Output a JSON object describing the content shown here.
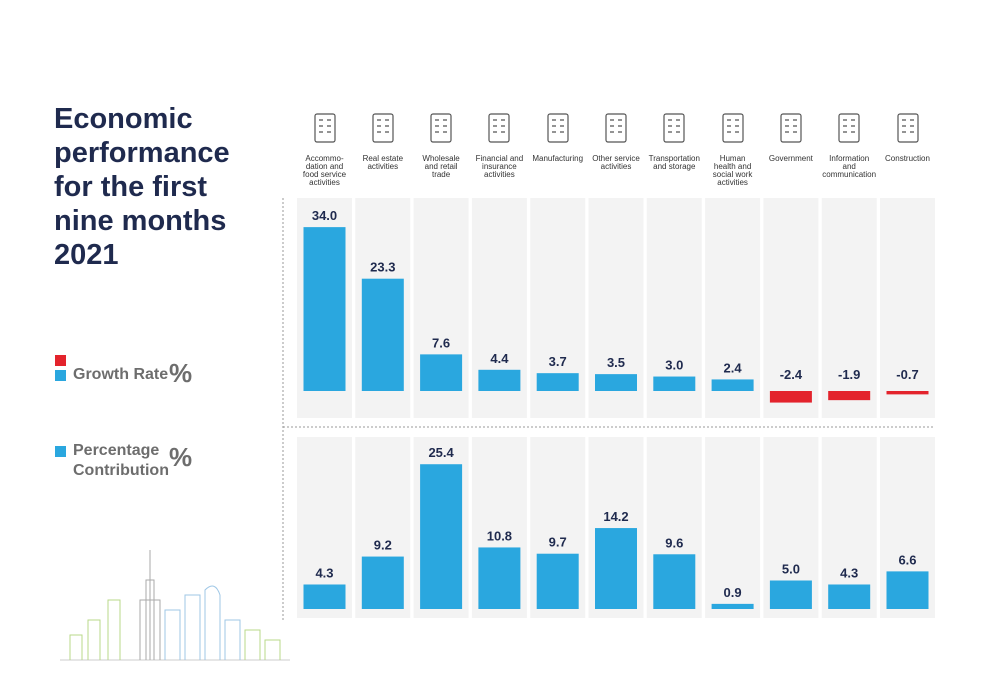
{
  "title": "Economic performance for the first nine months 2021",
  "legend": {
    "growth": "Growth Rate",
    "contribution_line1": "Percentage",
    "contribution_line2": "Contribution",
    "percent_symbol": "%"
  },
  "colors": {
    "positive": "#2aa7df",
    "negative": "#e3232c",
    "panel": "#f3f3f3",
    "title": "#1f2a4e"
  },
  "chart_data": [
    {
      "type": "bar",
      "title": "Growth Rate %",
      "categories": [
        "Accommodation and food service activities",
        "Real estate activities",
        "Wholesale and retail trade",
        "Financial and insurance activities",
        "Manufacturing",
        "Other service activities",
        "Transportation and storage",
        "Human health and social work activities",
        "Government",
        "Information and communication",
        "Construction"
      ],
      "values": [
        34.0,
        23.3,
        7.6,
        4.4,
        3.7,
        3.5,
        3.0,
        2.4,
        -2.4,
        -1.9,
        -0.7
      ],
      "labels": [
        "34.0",
        "23.3",
        "7.6",
        "4.4",
        "3.7",
        "3.5",
        "3.0",
        "2.4",
        "-2.4",
        "-1.9",
        "-0.7"
      ]
    },
    {
      "type": "bar",
      "title": "Percentage Contribution %",
      "categories": [
        "Accommodation and food service activities",
        "Real estate activities",
        "Wholesale and retail trade",
        "Financial and insurance activities",
        "Manufacturing",
        "Other service activities",
        "Transportation and storage",
        "Human health and social work activities",
        "Government",
        "Information and communication",
        "Construction"
      ],
      "values": [
        4.3,
        9.2,
        25.4,
        10.8,
        9.7,
        14.2,
        9.6,
        0.9,
        5.0,
        4.3,
        6.6
      ],
      "labels": [
        "4.3",
        "9.2",
        "25.4",
        "10.8",
        "9.7",
        "14.2",
        "9.6",
        "0.9",
        "5.0",
        "4.3",
        "6.6"
      ]
    }
  ],
  "sectors": [
    {
      "label": [
        "Accommo-",
        "dation and",
        "food service",
        "activities"
      ],
      "icon": "hotel-service-icon"
    },
    {
      "label": [
        "Real estate",
        "activities"
      ],
      "icon": "building-icon"
    },
    {
      "label": [
        "Wholesale",
        "and retail",
        "trade"
      ],
      "icon": "shopping-cart-icon"
    },
    {
      "label": [
        "Financial and",
        "insurance",
        "activities"
      ],
      "icon": "coin-icon"
    },
    {
      "label": [
        "Manufacturing"
      ],
      "icon": "robot-arm-icon"
    },
    {
      "label": [
        "Other service",
        "activities"
      ],
      "icon": "gear-icon"
    },
    {
      "label": [
        "Transportation",
        "and storage"
      ],
      "icon": "plane-car-box-icon"
    },
    {
      "label": [
        "Human",
        "health and",
        "social work",
        "activities"
      ],
      "icon": "health-hands-icon"
    },
    {
      "label": [
        "Government"
      ],
      "icon": "government-building-icon"
    },
    {
      "label": [
        "Information",
        "and",
        "communication"
      ],
      "icon": "chat-bubbles-icon"
    },
    {
      "label": [
        "Construction"
      ],
      "icon": "crane-icon"
    }
  ]
}
